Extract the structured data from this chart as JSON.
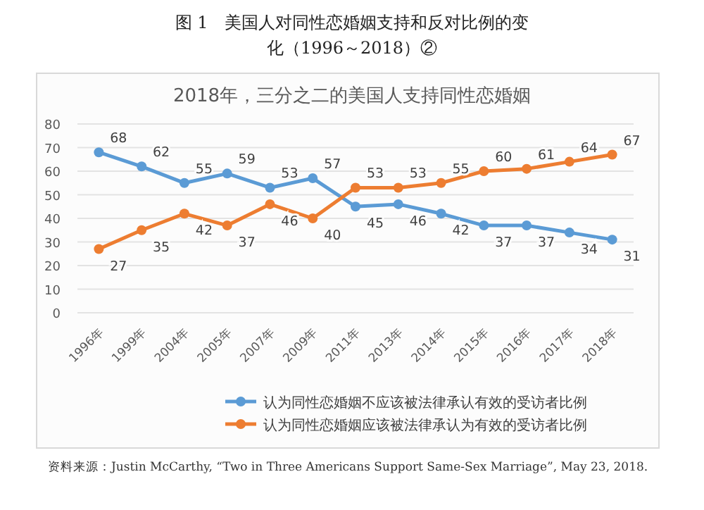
{
  "chart_data": {
    "type": "line",
    "title": "2018年，三分之二的美国人支持同性恋婚姻",
    "subtitle": "图 1　美国人对同性恋婚姻支持和反对比例的变化（1996～2018）②",
    "categories": [
      "1996年",
      "1999年",
      "2004年",
      "2005年",
      "2007年",
      "2009年",
      "2011年",
      "2013年",
      "2014年",
      "2015年",
      "2016年",
      "2017年",
      "2018年"
    ],
    "series": [
      {
        "name": "认为同性恋婚姻不应该被法律承认有效的受访者比例",
        "color": "#5b9bd5",
        "values": [
          68,
          62,
          55,
          59,
          53,
          57,
          45,
          46,
          42,
          37,
          37,
          34,
          31
        ]
      },
      {
        "name": "认为同性恋婚姻应该被法律承认为有效的受访者比例",
        "color": "#ed7d31",
        "values": [
          27,
          35,
          42,
          37,
          46,
          40,
          53,
          53,
          55,
          60,
          61,
          64,
          67
        ]
      }
    ],
    "ylim": [
      0,
      80
    ],
    "yticks": [
      0,
      10,
      20,
      30,
      40,
      50,
      60,
      70,
      80
    ],
    "grid": "y",
    "legend": "bottom",
    "marker": "circle",
    "line_style": "solid",
    "data_labels": true,
    "annotations": [
      "资料来源：Justin McCarthy, “Two in Three Americans Support Same-Sex Marriage”, May 23, 2018."
    ]
  }
}
